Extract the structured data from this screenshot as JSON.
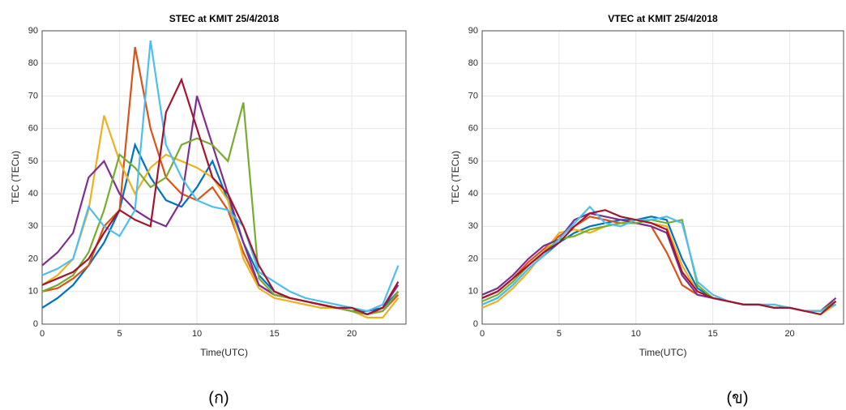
{
  "chart_data": [
    {
      "type": "line",
      "title": "STEC at KMIT 25/4/2018",
      "x_label": "Time(UTC)",
      "y_label": "TEC (TECu)",
      "caption": "(ก)",
      "xlim": [
        0,
        23.5
      ],
      "ylim": [
        0,
        90
      ],
      "xticks": [
        0,
        5,
        10,
        15,
        20
      ],
      "yticks": [
        0,
        10,
        20,
        30,
        40,
        50,
        60,
        70,
        80,
        90
      ],
      "grid": true,
      "x": [
        0,
        1,
        2,
        3,
        4,
        5,
        6,
        7,
        8,
        9,
        10,
        11,
        12,
        13,
        14,
        15,
        16,
        17,
        18,
        19,
        20,
        21,
        22,
        23
      ],
      "series": [
        {
          "color": "#0072BD",
          "values": [
            5,
            8,
            12,
            18,
            25,
            35,
            55,
            45,
            38,
            36,
            42,
            50,
            38,
            25,
            15,
            10,
            8,
            7,
            6,
            5,
            4,
            4,
            5,
            10
          ]
        },
        {
          "color": "#D95319",
          "values": [
            10,
            11,
            14,
            18,
            30,
            35,
            85,
            60,
            45,
            40,
            38,
            42,
            35,
            22,
            12,
            9,
            8,
            7,
            6,
            5,
            4,
            3,
            4,
            9
          ]
        },
        {
          "color": "#EDB120",
          "values": [
            12,
            15,
            20,
            35,
            64,
            50,
            40,
            48,
            52,
            50,
            48,
            45,
            38,
            20,
            11,
            8,
            7,
            6,
            5,
            5,
            4,
            2,
            2,
            8
          ]
        },
        {
          "color": "#7E2F8E",
          "values": [
            18,
            22,
            28,
            45,
            50,
            40,
            35,
            32,
            30,
            38,
            70,
            55,
            40,
            25,
            12,
            9,
            8,
            7,
            6,
            5,
            4,
            3,
            5,
            12
          ]
        },
        {
          "color": "#77AC30",
          "values": [
            10,
            12,
            15,
            22,
            35,
            52,
            48,
            42,
            45,
            55,
            57,
            55,
            50,
            68,
            14,
            9,
            8,
            7,
            6,
            5,
            4,
            3,
            4,
            10
          ]
        },
        {
          "color": "#4DBEEE",
          "values": [
            15,
            17,
            20,
            36,
            30,
            27,
            35,
            87,
            55,
            45,
            38,
            36,
            35,
            30,
            16,
            13,
            10,
            8,
            7,
            6,
            5,
            4,
            6,
            18
          ]
        },
        {
          "color": "#A2142F",
          "values": [
            12,
            14,
            16,
            20,
            28,
            35,
            32,
            30,
            65,
            75,
            60,
            45,
            40,
            30,
            18,
            10,
            8,
            7,
            6,
            5,
            5,
            3,
            5,
            13
          ]
        }
      ]
    },
    {
      "type": "line",
      "title": "VTEC at KMIT 25/4/2018",
      "x_label": "Time(UTC)",
      "y_label": "TEC (TECu)",
      "caption": "(ข)",
      "xlim": [
        0,
        23.5
      ],
      "ylim": [
        0,
        90
      ],
      "xticks": [
        0,
        5,
        10,
        15,
        20
      ],
      "yticks": [
        0,
        10,
        20,
        30,
        40,
        50,
        60,
        70,
        80,
        90
      ],
      "grid": true,
      "x": [
        0,
        1,
        2,
        3,
        4,
        5,
        6,
        7,
        8,
        9,
        10,
        11,
        12,
        13,
        14,
        15,
        16,
        17,
        18,
        19,
        20,
        21,
        22,
        23
      ],
      "series": [
        {
          "color": "#0072BD",
          "values": [
            6,
            8,
            12,
            17,
            21,
            25,
            28,
            30,
            31,
            32,
            32,
            33,
            32,
            20,
            11,
            8,
            7,
            6,
            6,
            5,
            5,
            4,
            4,
            6
          ]
        },
        {
          "color": "#D95319",
          "values": [
            8,
            10,
            14,
            19,
            23,
            27,
            30,
            33,
            32,
            31,
            31,
            30,
            22,
            12,
            9,
            8,
            7,
            6,
            6,
            5,
            5,
            4,
            4,
            7
          ]
        },
        {
          "color": "#EDB120",
          "values": [
            5,
            7,
            11,
            16,
            22,
            28,
            29,
            28,
            30,
            31,
            32,
            31,
            30,
            18,
            10,
            8,
            7,
            6,
            6,
            5,
            5,
            4,
            3,
            6
          ]
        },
        {
          "color": "#7E2F8E",
          "values": [
            9,
            11,
            15,
            20,
            24,
            26,
            32,
            34,
            33,
            32,
            31,
            30,
            28,
            15,
            9,
            8,
            7,
            6,
            6,
            5,
            5,
            4,
            4,
            8
          ]
        },
        {
          "color": "#77AC30",
          "values": [
            7,
            9,
            13,
            18,
            22,
            26,
            27,
            29,
            30,
            31,
            31,
            32,
            31,
            32,
            12,
            8,
            7,
            6,
            6,
            5,
            5,
            4,
            4,
            7
          ]
        },
        {
          "color": "#4DBEEE",
          "values": [
            6,
            8,
            12,
            17,
            21,
            26,
            31,
            36,
            31,
            30,
            32,
            32,
            33,
            31,
            13,
            9,
            7,
            6,
            6,
            6,
            5,
            4,
            4,
            6
          ]
        },
        {
          "color": "#A2142F",
          "values": [
            8,
            10,
            14,
            18,
            22,
            25,
            30,
            34,
            35,
            33,
            32,
            31,
            29,
            16,
            10,
            8,
            7,
            6,
            6,
            5,
            5,
            4,
            3,
            7
          ]
        }
      ]
    }
  ]
}
